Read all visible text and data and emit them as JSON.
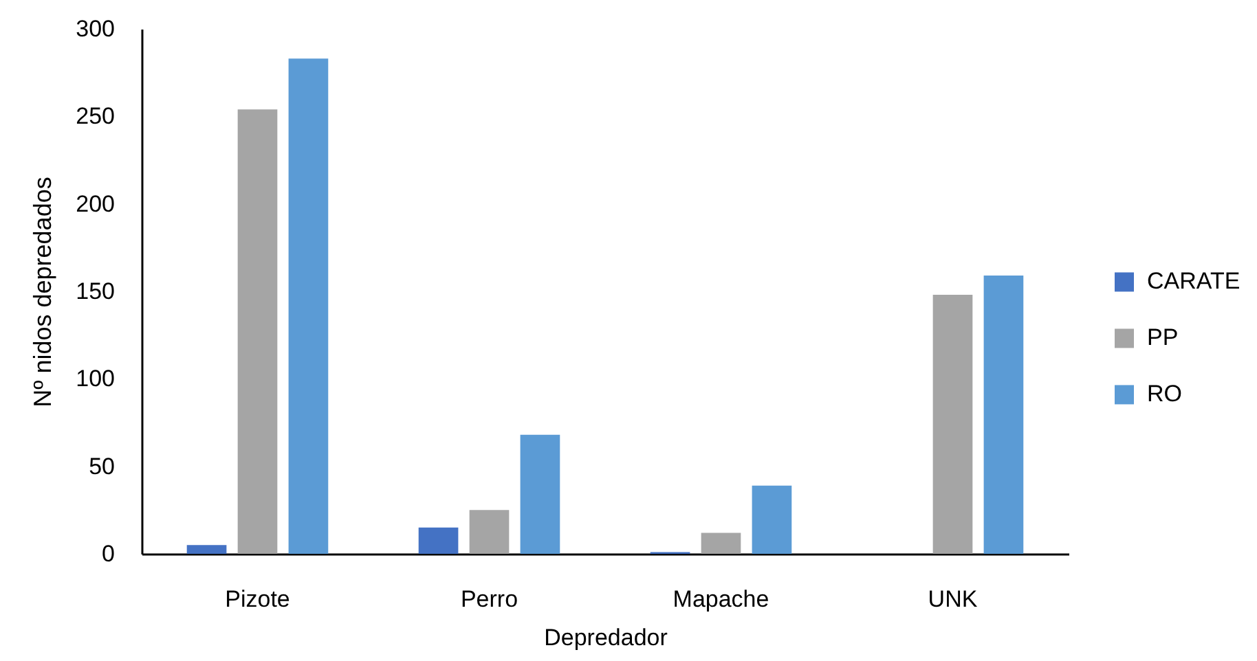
{
  "chart_data": {
    "type": "bar",
    "xlabel": "Depredador",
    "ylabel": "Nº nidos depredados",
    "categories": [
      "Pizote",
      "Perro",
      "Mapache",
      "UNK"
    ],
    "series": [
      {
        "name": "CARATE",
        "color": "#4472c4",
        "values": [
          5,
          15,
          1,
          null
        ]
      },
      {
        "name": "PP",
        "color": "#a5a5a5",
        "values": [
          254,
          25,
          12,
          148
        ]
      },
      {
        "name": "RO",
        "color": "#5b9bd5",
        "values": [
          283,
          68,
          39,
          159
        ]
      }
    ],
    "ylim": [
      0,
      300
    ],
    "yticks": [
      0,
      50,
      100,
      150,
      200,
      250,
      300
    ],
    "grid": false,
    "legend": "right"
  }
}
